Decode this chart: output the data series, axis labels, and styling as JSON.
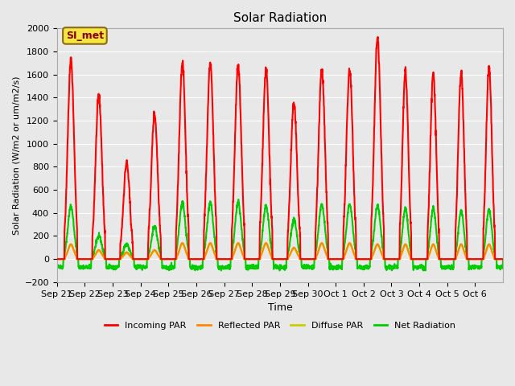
{
  "title": "Solar Radiation",
  "ylabel": "Solar Radiation (W/m2 or um/m2/s)",
  "xlabel": "Time",
  "ylim": [
    -200,
    2000
  ],
  "annotation": "SI_met",
  "background_color": "#e8e8e8",
  "grid_color": "#ffffff",
  "tick_labels": [
    "Sep 21",
    "Sep 22",
    "Sep 23",
    "Sep 24",
    "Sep 25",
    "Sep 26",
    "Sep 27",
    "Sep 28",
    "Sep 29",
    "Sep 30",
    "Oct 1",
    "Oct 2",
    "Oct 3",
    "Oct 4",
    "Oct 5",
    "Oct 6"
  ],
  "series": {
    "incoming_par": {
      "color": "#ff0000",
      "label": "Incoming PAR",
      "linewidth": 1.5
    },
    "reflected_par": {
      "color": "#ff8800",
      "label": "Reflected PAR",
      "linewidth": 1.5
    },
    "diffuse_par": {
      "color": "#cccc00",
      "label": "Diffuse PAR",
      "linewidth": 1.5
    },
    "net_radiation": {
      "color": "#00cc00",
      "label": "Net Radiation",
      "linewidth": 1.5
    }
  },
  "incoming_peaks": [
    1720,
    1420,
    830,
    1260,
    1700,
    1700,
    1680,
    1640,
    1350,
    1650,
    1640,
    1910,
    1630,
    1610,
    1620,
    1660
  ],
  "reflected_peaks": [
    130,
    80,
    60,
    80,
    140,
    140,
    140,
    140,
    100,
    140,
    140,
    130,
    130,
    130,
    130,
    130
  ],
  "diffuse_peaks": [
    120,
    70,
    50,
    70,
    130,
    130,
    130,
    130,
    90,
    130,
    130,
    120,
    120,
    120,
    120,
    120
  ],
  "net_peaks": [
    460,
    200,
    130,
    280,
    490,
    490,
    490,
    460,
    340,
    470,
    480,
    460,
    440,
    440,
    420,
    430
  ],
  "n_days": 16,
  "points_per_day": 144
}
